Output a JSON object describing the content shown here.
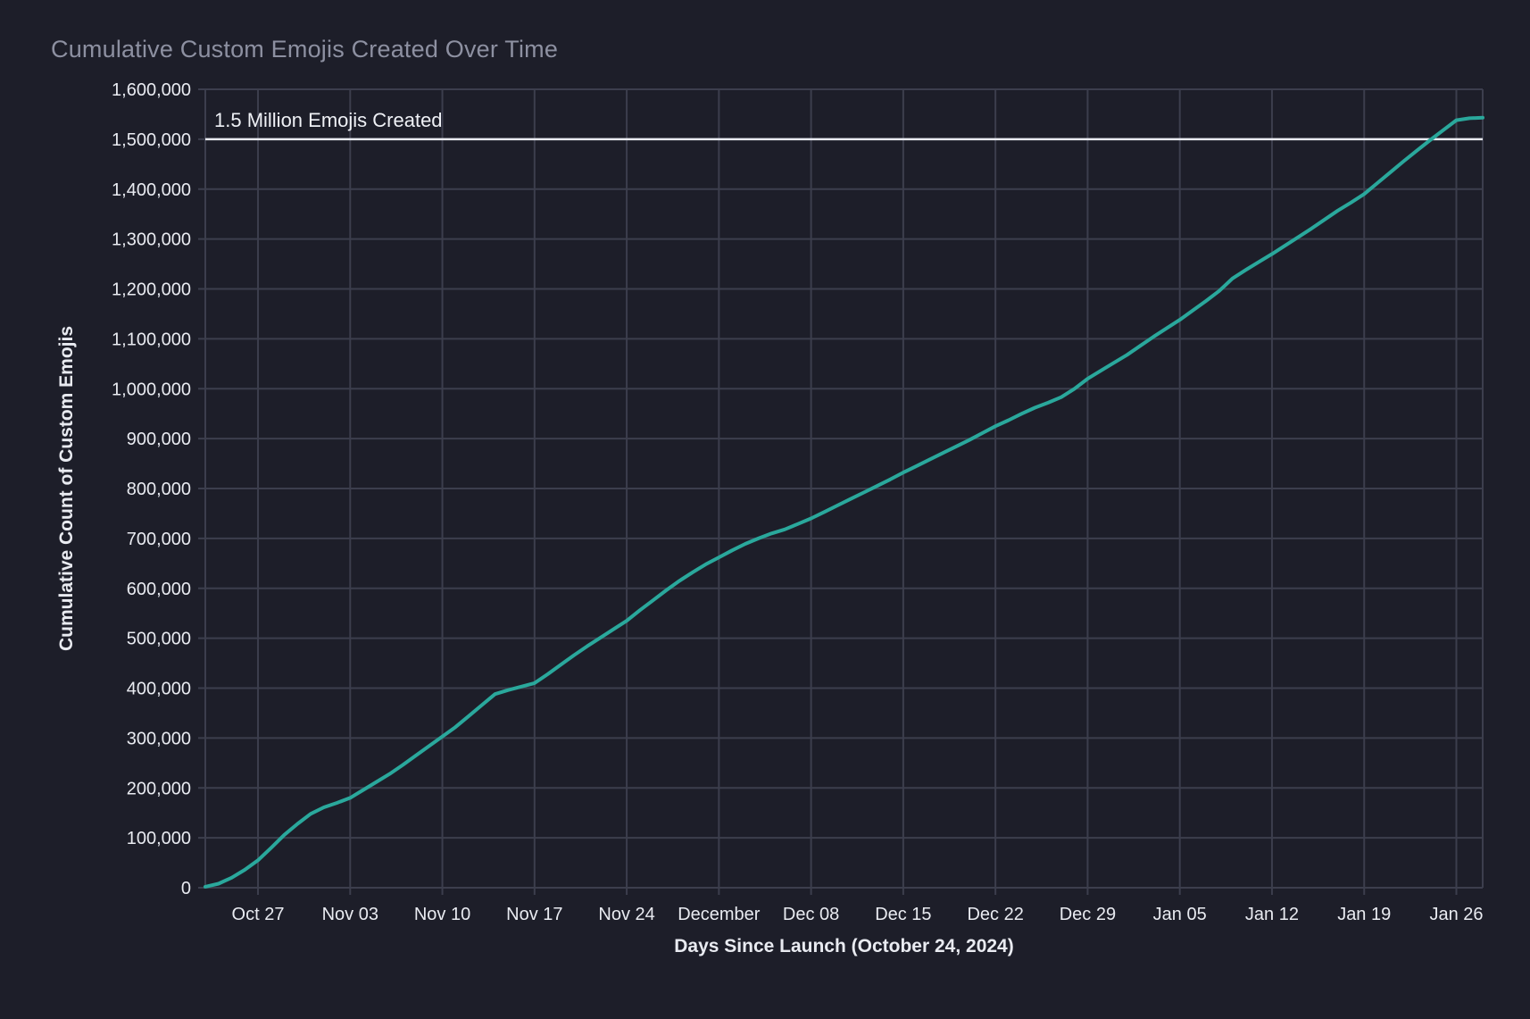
{
  "figure": {
    "title": "Cumulative Custom Emojis Created Over Time",
    "x_axis_title": "Days Since Launch (October 24, 2024)",
    "y_axis_title": "Cumulative Count of Custom Emojis"
  },
  "colors": {
    "background": "#1d1e29",
    "grid": "#3c3e4d",
    "series_line": "#2aa89c",
    "reference_line": "#e9ebf2",
    "title_text": "#8d90a1",
    "tick_text": "#e9ebf1",
    "annotation_text": "#eff1f6"
  },
  "chart_data": {
    "type": "line",
    "title": "Cumulative Custom Emojis Created Over Time",
    "xlabel": "Days Since Launch (October 24, 2024)",
    "ylabel": "Cumulative Count of Custom Emojis",
    "x_units": "days since launch (Oct 24, 2024)",
    "xlim": [
      -1,
      96
    ],
    "ylim": [
      0,
      1600000
    ],
    "grid": true,
    "legend": false,
    "x_ticks": [
      {
        "label": "Oct 27",
        "day": 3
      },
      {
        "label": "Nov 03",
        "day": 10
      },
      {
        "label": "Nov 10",
        "day": 17
      },
      {
        "label": "Nov 17",
        "day": 24
      },
      {
        "label": "Nov 24",
        "day": 31
      },
      {
        "label": "December",
        "day": 38
      },
      {
        "label": "Dec 08",
        "day": 45
      },
      {
        "label": "Dec 15",
        "day": 52
      },
      {
        "label": "Dec 22",
        "day": 59
      },
      {
        "label": "Dec 29",
        "day": 66
      },
      {
        "label": "Jan 05",
        "day": 73
      },
      {
        "label": "Jan 12",
        "day": 80
      },
      {
        "label": "Jan 19",
        "day": 87
      },
      {
        "label": "Jan 26",
        "day": 94
      }
    ],
    "y_ticks": [
      {
        "label": "0",
        "value": 0
      },
      {
        "label": "100,000",
        "value": 100000
      },
      {
        "label": "200,000",
        "value": 200000
      },
      {
        "label": "300,000",
        "value": 300000
      },
      {
        "label": "400,000",
        "value": 400000
      },
      {
        "label": "500,000",
        "value": 500000
      },
      {
        "label": "600,000",
        "value": 600000
      },
      {
        "label": "700,000",
        "value": 700000
      },
      {
        "label": "800,000",
        "value": 800000
      },
      {
        "label": "900,000",
        "value": 900000
      },
      {
        "label": "1,000,000",
        "value": 1000000
      },
      {
        "label": "1,100,000",
        "value": 1100000
      },
      {
        "label": "1,200,000",
        "value": 1200000
      },
      {
        "label": "1,300,000",
        "value": 1300000
      },
      {
        "label": "1,400,000",
        "value": 1400000
      },
      {
        "label": "1,500,000",
        "value": 1500000
      },
      {
        "label": "1,600,000",
        "value": 1600000
      }
    ],
    "reference_line": {
      "value": 1500000,
      "label": "1.5 Million Emojis Created"
    },
    "series": [
      {
        "name": "cumulative-custom-emojis",
        "color": "#2aa89c",
        "points": [
          [
            -1,
            2000
          ],
          [
            0,
            8000
          ],
          [
            1,
            20000
          ],
          [
            2,
            36000
          ],
          [
            3,
            55000
          ],
          [
            4,
            80000
          ],
          [
            5,
            106000
          ],
          [
            6,
            128000
          ],
          [
            7,
            148000
          ],
          [
            8,
            161000
          ],
          [
            9,
            170000
          ],
          [
            10,
            180000
          ],
          [
            11,
            196000
          ],
          [
            12,
            212000
          ],
          [
            13,
            228000
          ],
          [
            14,
            246000
          ],
          [
            15,
            265000
          ],
          [
            16,
            284000
          ],
          [
            17,
            303000
          ],
          [
            18,
            322000
          ],
          [
            19,
            344000
          ],
          [
            20,
            366000
          ],
          [
            21,
            388000
          ],
          [
            22,
            396000
          ],
          [
            23,
            403000
          ],
          [
            24,
            410000
          ],
          [
            25,
            428000
          ],
          [
            26,
            447000
          ],
          [
            27,
            466000
          ],
          [
            28,
            484000
          ],
          [
            29,
            501000
          ],
          [
            30,
            518000
          ],
          [
            31,
            535000
          ],
          [
            32,
            556000
          ],
          [
            33,
            576000
          ],
          [
            34,
            596000
          ],
          [
            35,
            615000
          ],
          [
            36,
            632000
          ],
          [
            37,
            648000
          ],
          [
            38,
            662000
          ],
          [
            39,
            676000
          ],
          [
            40,
            689000
          ],
          [
            41,
            700000
          ],
          [
            42,
            710000
          ],
          [
            43,
            718000
          ],
          [
            44,
            729000
          ],
          [
            45,
            740000
          ],
          [
            46,
            753000
          ],
          [
            47,
            766000
          ],
          [
            48,
            779000
          ],
          [
            49,
            792000
          ],
          [
            50,
            805000
          ],
          [
            51,
            818000
          ],
          [
            52,
            832000
          ],
          [
            53,
            845000
          ],
          [
            54,
            858000
          ],
          [
            55,
            871000
          ],
          [
            56,
            884000
          ],
          [
            57,
            897000
          ],
          [
            58,
            911000
          ],
          [
            59,
            925000
          ],
          [
            60,
            937000
          ],
          [
            61,
            950000
          ],
          [
            62,
            962000
          ],
          [
            63,
            972000
          ],
          [
            64,
            983000
          ],
          [
            65,
            1000000
          ],
          [
            66,
            1020000
          ],
          [
            67,
            1036000
          ],
          [
            68,
            1052000
          ],
          [
            69,
            1068000
          ],
          [
            70,
            1086000
          ],
          [
            71,
            1104000
          ],
          [
            72,
            1121000
          ],
          [
            73,
            1138000
          ],
          [
            74,
            1157000
          ],
          [
            75,
            1176000
          ],
          [
            76,
            1196000
          ],
          [
            77,
            1221000
          ],
          [
            78,
            1238000
          ],
          [
            79,
            1254000
          ],
          [
            80,
            1270000
          ],
          [
            81,
            1287000
          ],
          [
            82,
            1304000
          ],
          [
            83,
            1321000
          ],
          [
            84,
            1339000
          ],
          [
            85,
            1357000
          ],
          [
            86,
            1373000
          ],
          [
            87,
            1390000
          ],
          [
            88,
            1412000
          ],
          [
            89,
            1434000
          ],
          [
            90,
            1456000
          ],
          [
            91,
            1477000
          ],
          [
            92,
            1498000
          ],
          [
            93,
            1518000
          ],
          [
            94,
            1538000
          ],
          [
            95,
            1542000
          ],
          [
            96,
            1543000
          ]
        ]
      }
    ]
  }
}
